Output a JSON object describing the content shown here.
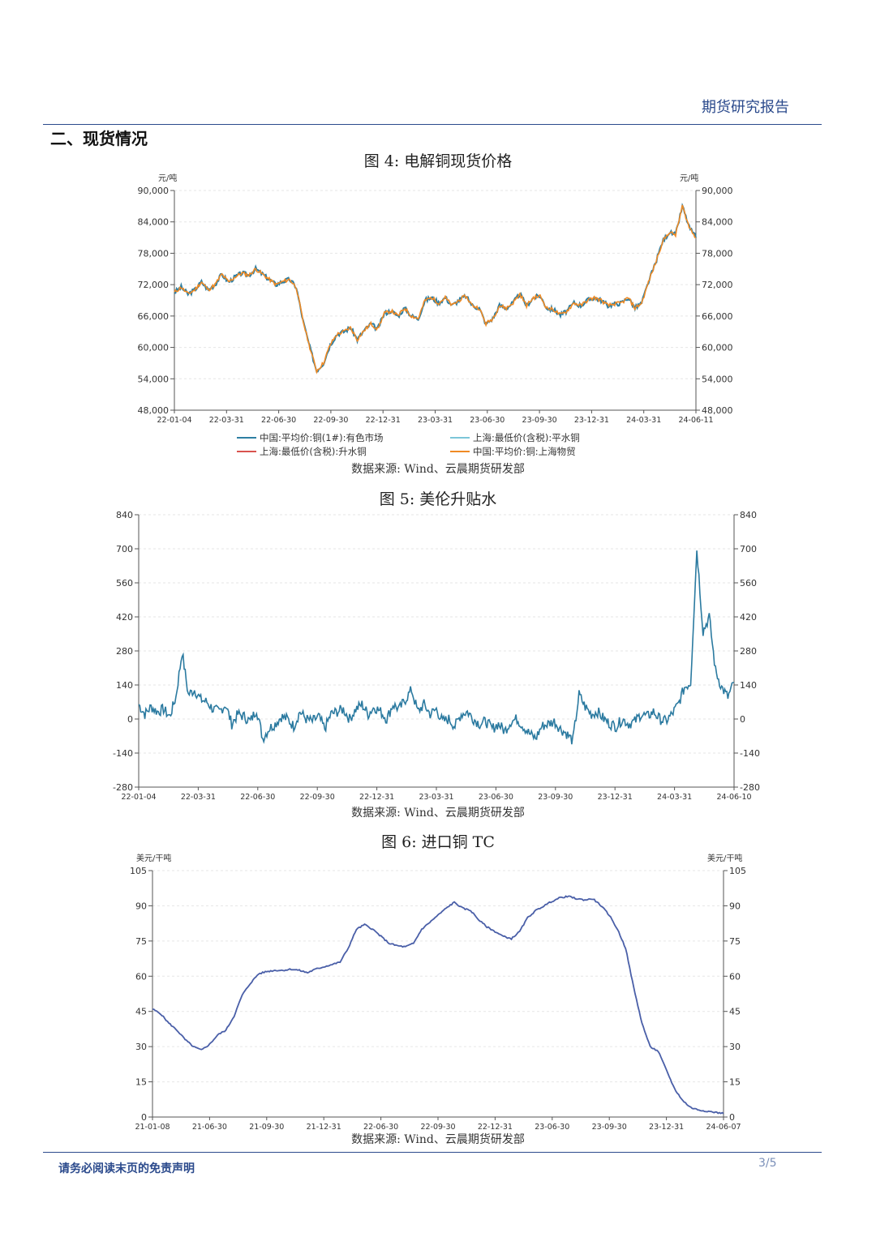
{
  "header": {
    "title": "期货研究报告"
  },
  "section": {
    "title": "二、现货情况"
  },
  "figures": [
    {
      "title": "图 4:  电解铜现货价格",
      "source": "数据来源: Wind、云晨期货研发部"
    },
    {
      "title": "图 5:  美伦升贴水",
      "source": "数据来源: Wind、云晨期货研发部"
    },
    {
      "title": "图 6:  进口铜 TC",
      "source": "数据来源: Wind、云晨期货研发部"
    }
  ],
  "footer": {
    "note": "请务必阅读末页的免责声明",
    "page": "3/5"
  },
  "chart_data": [
    {
      "type": "line",
      "title": "图 4:  电解铜现货价格",
      "ylabel_left": "元/吨",
      "ylabel_right": "元/吨",
      "ylim": [
        48000,
        90000
      ],
      "yticks": [
        "48,000",
        "54,000",
        "60,000",
        "66,000",
        "72,000",
        "78,000",
        "84,000",
        "90,000"
      ],
      "xticks": [
        "22-01-04",
        "22-03-31",
        "22-06-30",
        "22-09-30",
        "22-12-31",
        "23-03-31",
        "23-06-30",
        "23-09-30",
        "23-12-31",
        "24-03-31",
        "24-06-11"
      ],
      "legend": [
        {
          "name": "中国:平均价:铜(1#):有色市场",
          "color": "#2e7fa3"
        },
        {
          "name": "上海:最低价(含税):平水铜",
          "color": "#7cc6d8"
        },
        {
          "name": "上海:最低价(含税):升水铜",
          "color": "#d9534f"
        },
        {
          "name": "中国:平均价:铜:上海物贸",
          "color": "#f08a24"
        }
      ],
      "series_main": [
        70500,
        71500,
        70200,
        71000,
        72500,
        71000,
        72000,
        74000,
        72500,
        73500,
        74200,
        73800,
        75000,
        74000,
        73000,
        72000,
        72600,
        73000,
        71500,
        65000,
        60000,
        55500,
        57000,
        60500,
        62500,
        63000,
        63800,
        61500,
        63200,
        64500,
        63500,
        66500,
        67000,
        66000,
        67500,
        66000,
        65500,
        69000,
        69500,
        68500,
        69500,
        68000,
        69000,
        69800,
        68000,
        67500,
        64500,
        65500,
        68000,
        67500,
        68500,
        70200,
        68000,
        69500,
        69800,
        67500,
        67200,
        66200,
        67000,
        68500,
        68000,
        69000,
        69500,
        69000,
        68000,
        68300,
        68500,
        69500,
        67500,
        68500,
        72500,
        76000,
        80000,
        82000,
        81500,
        87000,
        83000,
        81000
      ],
      "series_alt_offset": [
        150,
        -100,
        200,
        -150,
        100,
        -50,
        250,
        -200,
        100,
        0
      ]
    },
    {
      "type": "line",
      "title": "图 5:  美伦升贴水",
      "ylim": [
        -280,
        840
      ],
      "yticks": [
        "-280",
        "-140",
        "0",
        "140",
        "280",
        "420",
        "560",
        "700",
        "840"
      ],
      "xticks": [
        "22-01-04",
        "22-03-31",
        "22-06-30",
        "22-09-30",
        "22-12-31",
        "23-03-31",
        "23-06-30",
        "23-09-30",
        "23-12-31",
        "24-03-31",
        "24-06-10"
      ],
      "color": "#2b7aa0",
      "values": [
        60,
        20,
        50,
        30,
        40,
        10,
        90,
        275,
        100,
        120,
        80,
        70,
        40,
        30,
        60,
        -20,
        20,
        10,
        -10,
        40,
        -80,
        -40,
        -20,
        10,
        0,
        -30,
        30,
        0,
        -10,
        10,
        -40,
        20,
        30,
        40,
        0,
        40,
        60,
        20,
        50,
        30,
        0,
        60,
        40,
        80,
        120,
        30,
        60,
        20,
        40,
        -10,
        0,
        -30,
        20,
        30,
        0,
        -20,
        -10,
        -40,
        -20,
        -50,
        -10,
        0,
        -30,
        -60,
        -80,
        -30,
        -20,
        -10,
        -40,
        -60,
        -90,
        100,
        50,
        20,
        30,
        0,
        -20,
        -30,
        0,
        -20,
        -10,
        20,
        10,
        30,
        0,
        -10,
        20,
        60,
        130,
        150,
        700,
        360,
        420,
        200,
        130,
        90,
        150
      ],
      "seed": 7
    },
    {
      "type": "line",
      "title": "图 6:  进口铜 TC",
      "ylabel_left": "美元/干吨",
      "ylabel_right": "美元/干吨",
      "ylim": [
        0,
        105
      ],
      "yticks": [
        "0",
        "15",
        "30",
        "45",
        "60",
        "75",
        "90",
        "105"
      ],
      "xticks": [
        "21-01-08",
        "21-06-30",
        "21-09-30",
        "21-12-31",
        "22-06-30",
        "22-09-30",
        "22-12-31",
        "23-06-30",
        "23-09-30",
        "23-12-31",
        "24-06-07"
      ],
      "color": "#4a5fa8",
      "values": [
        46,
        44,
        40,
        37,
        33,
        30,
        28.5,
        31,
        35,
        37,
        43,
        52,
        57,
        61,
        62,
        62.5,
        62.5,
        63,
        62.5,
        61.5,
        63,
        64,
        65,
        66,
        72,
        80,
        82,
        80,
        77,
        74,
        73,
        72.5,
        74,
        80,
        83,
        86,
        89,
        91.5,
        89,
        88,
        84,
        81,
        79,
        77,
        76,
        79,
        85,
        88,
        90,
        92,
        93.5,
        94,
        93,
        92.5,
        93,
        90,
        86,
        80,
        72,
        55,
        40,
        30,
        28,
        20,
        12,
        7,
        4,
        3,
        2.5,
        2,
        1.5
      ]
    }
  ]
}
